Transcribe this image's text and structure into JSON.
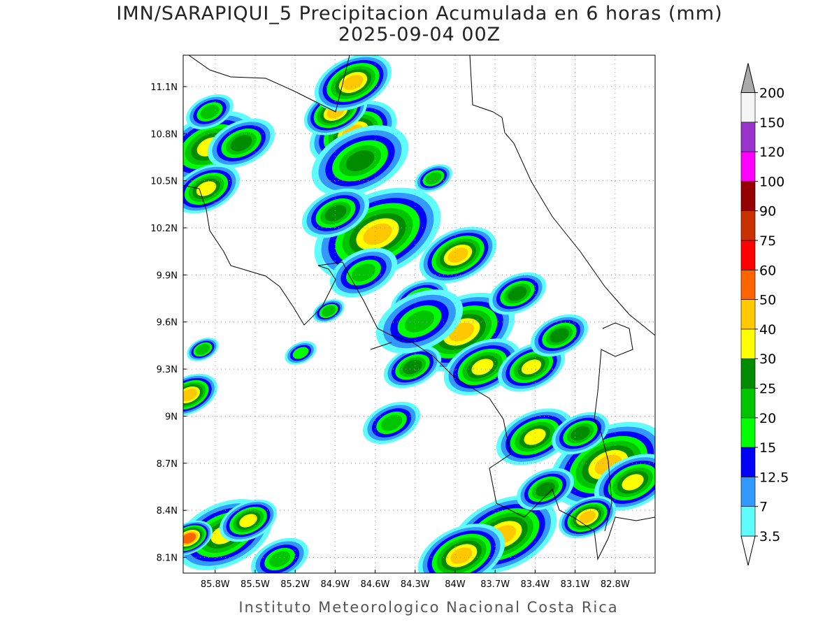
{
  "title": "IMN/SARAPIQUI_5 Precipitacion Acumulada en 6 horas (mm)",
  "subtitle": "2025-09-04 00Z",
  "footer": "Instituto Meteorologico Nacional Costa Rica",
  "map": {
    "xlim": [
      -86.04,
      -82.5
    ],
    "ylim": [
      8.0,
      11.3
    ],
    "xticks": [
      {
        "value": -85.8,
        "label": "85.8W"
      },
      {
        "value": -85.5,
        "label": "85.5W"
      },
      {
        "value": -85.2,
        "label": "85.2W"
      },
      {
        "value": -84.9,
        "label": "84.9W"
      },
      {
        "value": -84.6,
        "label": "84.6W"
      },
      {
        "value": -84.3,
        "label": "84.3W"
      },
      {
        "value": -84.0,
        "label": "84W"
      },
      {
        "value": -83.7,
        "label": "83.7W"
      },
      {
        "value": -83.4,
        "label": "83.4W"
      },
      {
        "value": -83.1,
        "label": "83.1W"
      },
      {
        "value": -82.8,
        "label": "82.8W"
      }
    ],
    "yticks": [
      {
        "value": 8.1,
        "label": "8.1N"
      },
      {
        "value": 8.4,
        "label": "8.4N"
      },
      {
        "value": 8.7,
        "label": "8.7N"
      },
      {
        "value": 9.0,
        "label": "9N"
      },
      {
        "value": 9.3,
        "label": "9.3N"
      },
      {
        "value": 9.6,
        "label": "9.6N"
      },
      {
        "value": 9.9,
        "label": "9.9N"
      },
      {
        "value": 10.2,
        "label": "10.2N"
      },
      {
        "value": 10.5,
        "label": "10.5N"
      },
      {
        "value": 10.8,
        "label": "10.8N"
      },
      {
        "value": 11.1,
        "label": "11.1N"
      }
    ],
    "grid": true
  },
  "colorbar": {
    "levels": [
      3.5,
      7,
      12.5,
      15,
      20,
      25,
      30,
      40,
      50,
      60,
      75,
      90,
      100,
      120,
      150,
      200
    ],
    "colors": [
      "#ffffff",
      "#5ffcfc",
      "#3399ff",
      "#0000ff",
      "#00ff00",
      "#00c400",
      "#008c00",
      "#ffff00",
      "#ffc800",
      "#ff6400",
      "#ff0000",
      "#c83200",
      "#960000",
      "#ff00ff",
      "#9933cc",
      "#f5f5f5",
      "#aaaaaa"
    ]
  }
}
